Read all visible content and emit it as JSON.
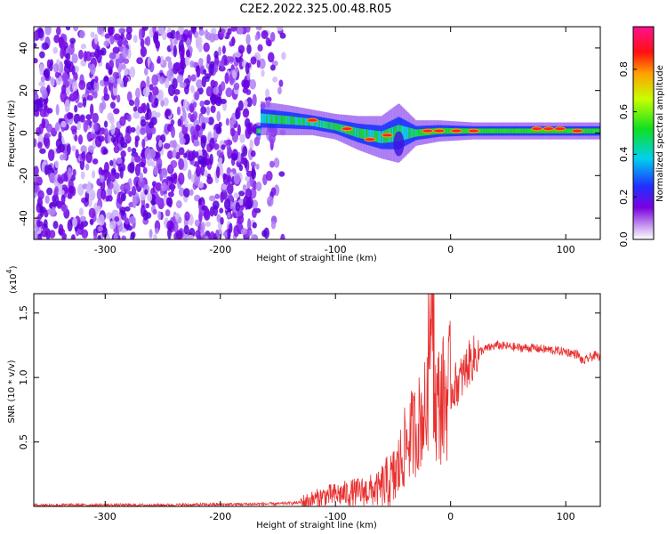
{
  "title": "C2E2.2022.325.00.48.R05",
  "chart_data": [
    {
      "type": "heatmap",
      "xlabel": "Height of straight line (km)",
      "ylabel": "Frequency (Hz)",
      "xlim": [
        -362,
        130
      ],
      "ylim": [
        -50,
        50
      ],
      "xticks": [
        -300,
        -200,
        -100,
        0,
        100
      ],
      "xtick_labels": [
        "-300",
        "-200",
        "-100",
        "0",
        "100"
      ],
      "yticks": [
        -40,
        -20,
        0,
        20,
        40
      ],
      "ytick_labels": [
        "-40",
        "-20",
        "0",
        "20",
        "40"
      ],
      "colorbar": {
        "label": "Normalized spectral amplitude",
        "range": [
          0,
          1
        ],
        "ticks": [
          0,
          0.2,
          0.4,
          0.6,
          0.8
        ],
        "tick_labels": [
          "0.0",
          "0.2",
          "0.4",
          "0.6",
          "0.8"
        ],
        "colormap": "rainbow (violet → blue → cyan → green → yellow → red → magenta)"
      },
      "signal_band": [
        {
          "x": -165,
          "f_center": 7,
          "width": 8
        },
        {
          "x": -140,
          "f_center": 6,
          "width": 7
        },
        {
          "x": -120,
          "f_center": 5,
          "width": 6
        },
        {
          "x": -100,
          "f_center": 3,
          "width": 6
        },
        {
          "x": -80,
          "f_center": 0,
          "width": 8
        },
        {
          "x": -60,
          "f_center": -2,
          "width": 10
        },
        {
          "x": -45,
          "f_center": 0,
          "width": 14
        },
        {
          "x": -30,
          "f_center": 0,
          "width": 6
        },
        {
          "x": -10,
          "f_center": 1,
          "width": 5
        },
        {
          "x": 20,
          "f_center": 1,
          "width": 4
        },
        {
          "x": 60,
          "f_center": 1,
          "width": 4
        },
        {
          "x": 100,
          "f_center": 1,
          "width": 4
        },
        {
          "x": 130,
          "f_center": 1,
          "width": 4
        }
      ],
      "noise_region": {
        "x_from": -362,
        "x_to": -145,
        "f_from": -50,
        "f_to": 50
      }
    },
    {
      "type": "line",
      "xlabel": "Height of straight line (km)",
      "ylabel": "SNR (10 * v/v)",
      "y_multiplier_label": "(x10",
      "y_multiplier_exp": "4",
      "y_multiplier_close": ")",
      "xlim": [
        -362,
        130
      ],
      "ylim": [
        0,
        1.65
      ],
      "xticks": [
        -300,
        -200,
        -100,
        0,
        100
      ],
      "xtick_labels": [
        "-300",
        "-200",
        "-100",
        "0",
        "100"
      ],
      "yticks": [
        0.5,
        1.0,
        1.5
      ],
      "ytick_labels": [
        "0.5",
        "1.0",
        "1.5"
      ],
      "color": "#e8302f",
      "series": [
        {
          "x": [
            -362,
            -300,
            -250,
            -200,
            -150,
            -130,
            -120,
            -110,
            -100,
            -90,
            -80,
            -70,
            -60,
            -50,
            -45,
            -40,
            -35,
            -30,
            -25,
            -20,
            -17,
            -15,
            -10,
            -5,
            0,
            5,
            10,
            15,
            20,
            25,
            30,
            40,
            50,
            60,
            70,
            80,
            90,
            100,
            110,
            115,
            120,
            125,
            130
          ],
          "y": [
            0.01,
            0.01,
            0.01,
            0.015,
            0.02,
            0.03,
            0.05,
            0.08,
            0.09,
            0.1,
            0.11,
            0.12,
            0.14,
            0.2,
            0.3,
            0.45,
            0.55,
            0.6,
            0.7,
            0.75,
            1.65,
            0.78,
            0.8,
            0.85,
            0.9,
            0.95,
            1.0,
            1.1,
            1.15,
            1.2,
            1.22,
            1.25,
            1.24,
            1.23,
            1.23,
            1.22,
            1.21,
            1.2,
            1.18,
            1.12,
            1.15,
            1.17,
            1.16
          ]
        }
      ]
    }
  ]
}
